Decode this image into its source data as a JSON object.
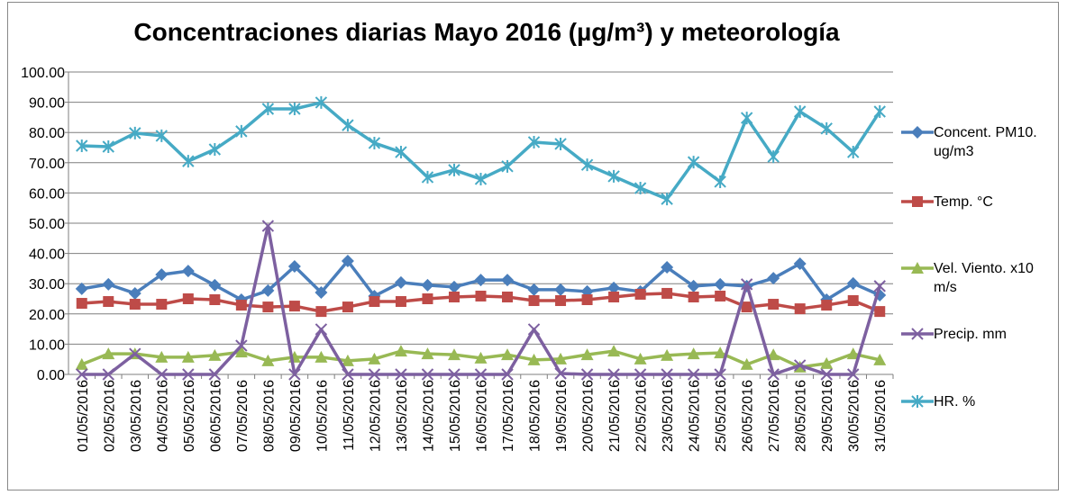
{
  "chart_data": {
    "type": "line",
    "title": "Concentraciones diarias Mayo 2016 (µg/m³) y meteorología",
    "categories": [
      "01/05/2016",
      "02/05/2016",
      "03/05/2016",
      "04/05/2016",
      "05/05/2016",
      "06/05/2016",
      "07/05/2016",
      "08/05/2016",
      "09/05/2016",
      "10/05/2016",
      "11/05/2016",
      "12/05/2016",
      "13/05/2016",
      "14/05/2016",
      "15/05/2016",
      "16/05/2016",
      "17/05/2016",
      "18/05/2016",
      "19/05/2016",
      "20/05/2016",
      "21/05/2016",
      "22/05/2016",
      "23/05/2016",
      "24/05/2016",
      "25/05/2016",
      "26/05/2016",
      "27/05/2016",
      "28/05/2016",
      "29/05/2016",
      "30/05/2016",
      "31/05/2016"
    ],
    "series": [
      {
        "name": "Concent. PM10. ug/m3",
        "color": "#4a7ebb",
        "marker": "diamond",
        "values": [
          28.3,
          29.8,
          26.8,
          33.0,
          34.2,
          29.5,
          24.7,
          27.7,
          35.7,
          27.1,
          37.5,
          25.9,
          30.4,
          29.5,
          28.9,
          31.2,
          31.2,
          28.0,
          28.0,
          27.4,
          28.6,
          27.4,
          35.4,
          29.2,
          29.8,
          29.2,
          31.8,
          36.6,
          24.7,
          30.1,
          26.2
        ]
      },
      {
        "name": "Temp. °C",
        "color": "#be4b48",
        "marker": "square",
        "values": [
          23.5,
          24.1,
          23.2,
          23.2,
          25.0,
          24.7,
          22.9,
          22.3,
          22.6,
          20.8,
          22.3,
          24.1,
          24.1,
          25.0,
          25.6,
          25.9,
          25.6,
          24.4,
          24.4,
          24.7,
          25.6,
          26.5,
          26.8,
          25.6,
          25.9,
          22.3,
          23.2,
          21.7,
          22.9,
          24.4,
          20.8
        ]
      },
      {
        "name": "Vel. Viento. x10 m/s",
        "color": "#98b954",
        "marker": "triangle",
        "values": [
          3.3,
          6.8,
          6.8,
          5.7,
          5.7,
          6.3,
          7.4,
          4.5,
          5.7,
          5.7,
          4.5,
          5.1,
          7.7,
          6.8,
          6.5,
          5.4,
          6.5,
          4.8,
          5.1,
          6.5,
          7.7,
          5.1,
          6.3,
          6.8,
          7.1,
          3.3,
          6.5,
          2.4,
          3.6,
          6.8,
          4.8
        ]
      },
      {
        "name": "Precip. mm",
        "color": "#7d60a0",
        "marker": "x",
        "values": [
          0,
          0,
          6.8,
          0,
          0,
          0,
          9.5,
          49.1,
          0,
          14.9,
          0,
          0,
          0,
          0,
          0,
          0,
          0,
          14.9,
          0.3,
          0,
          0,
          0,
          0,
          0,
          0,
          29.8,
          0,
          3.0,
          0,
          0,
          29.2
        ]
      },
      {
        "name": "HR. %",
        "color": "#46aac5",
        "marker": "star",
        "values": [
          75.6,
          75.3,
          79.8,
          78.9,
          70.5,
          74.4,
          80.4,
          87.8,
          87.8,
          89.9,
          82.4,
          76.5,
          73.5,
          65.2,
          67.6,
          64.6,
          68.8,
          76.8,
          76.2,
          69.3,
          65.5,
          61.6,
          58.0,
          70.2,
          63.7,
          84.8,
          72.0,
          86.9,
          81.3,
          73.5,
          86.9
        ]
      }
    ],
    "ylim": [
      0,
      100
    ],
    "yticks": [
      {
        "value": 0,
        "label": "0.00"
      },
      {
        "value": 10,
        "label": "10.00"
      },
      {
        "value": 20,
        "label": "20.00"
      },
      {
        "value": 30,
        "label": "30.00"
      },
      {
        "value": 40,
        "label": "40.00"
      },
      {
        "value": 50,
        "label": "50.00"
      },
      {
        "value": 60,
        "label": "60.00"
      },
      {
        "value": 70,
        "label": "70.00"
      },
      {
        "value": 80,
        "label": "80.00"
      },
      {
        "value": 90,
        "label": "90.00"
      },
      {
        "value": 100,
        "label": "100.00"
      }
    ],
    "grid": true,
    "legend": "right"
  }
}
